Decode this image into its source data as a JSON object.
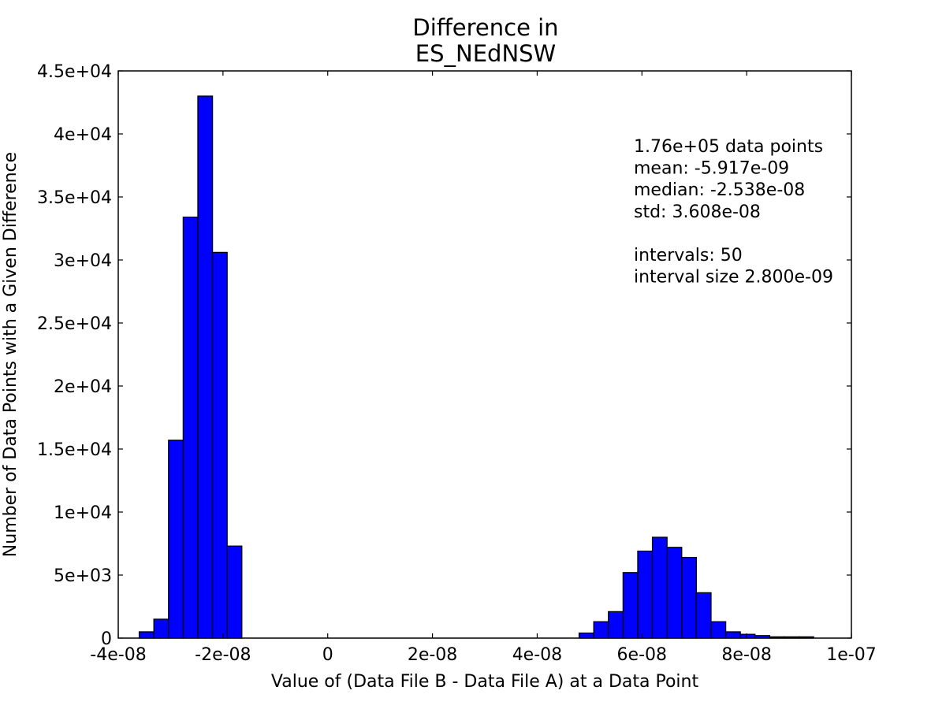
{
  "chart_data": {
    "type": "bar",
    "title_lines": [
      "Difference in",
      "ES_NEdNSW"
    ],
    "xlabel": "Value of (Data File B - Data File A) at a Data Point",
    "ylabel": "Number of Data Points with a Given Difference",
    "xlim": [
      -4e-08,
      1e-07
    ],
    "ylim": [
      0,
      45000
    ],
    "xticks": [
      {
        "value": -4e-08,
        "label": "-4e-08"
      },
      {
        "value": -2e-08,
        "label": "-2e-08"
      },
      {
        "value": 0,
        "label": "0"
      },
      {
        "value": 2e-08,
        "label": "2e-08"
      },
      {
        "value": 4e-08,
        "label": "4e-08"
      },
      {
        "value": 6e-08,
        "label": "6e-08"
      },
      {
        "value": 8e-08,
        "label": "8e-08"
      },
      {
        "value": 1e-07,
        "label": "1e-07"
      }
    ],
    "yticks": [
      {
        "value": 0,
        "label": "0"
      },
      {
        "value": 5000,
        "label": "5e+03"
      },
      {
        "value": 10000,
        "label": "1e+04"
      },
      {
        "value": 15000,
        "label": "1.5e+04"
      },
      {
        "value": 20000,
        "label": "2e+04"
      },
      {
        "value": 25000,
        "label": "2.5e+04"
      },
      {
        "value": 30000,
        "label": "3e+04"
      },
      {
        "value": 35000,
        "label": "3.5e+04"
      },
      {
        "value": 40000,
        "label": "4e+04"
      },
      {
        "value": 45000,
        "label": "4.5e+04"
      }
    ],
    "bin_start": -3.6e-08,
    "bin_width": 2.8e-09,
    "counts": [
      500,
      1500,
      15700,
      33400,
      43000,
      30600,
      7300,
      0,
      0,
      0,
      0,
      0,
      0,
      0,
      0,
      0,
      0,
      0,
      0,
      0,
      0,
      0,
      0,
      0,
      0,
      0,
      0,
      0,
      0,
      0,
      400,
      1300,
      2100,
      5200,
      6900,
      8000,
      7200,
      6400,
      3600,
      1300,
      500,
      300,
      200,
      100,
      100,
      100,
      0,
      0,
      0,
      0
    ],
    "bar_color": "#0000ff",
    "edge_color": "#000000",
    "grid": false,
    "stats_lines": [
      "1.76e+05 data points",
      "mean: -5.917e-09",
      "median: -2.538e-08",
      "std: 3.608e-08",
      "",
      "intervals: 50",
      "interval size 2.800e-09"
    ]
  }
}
